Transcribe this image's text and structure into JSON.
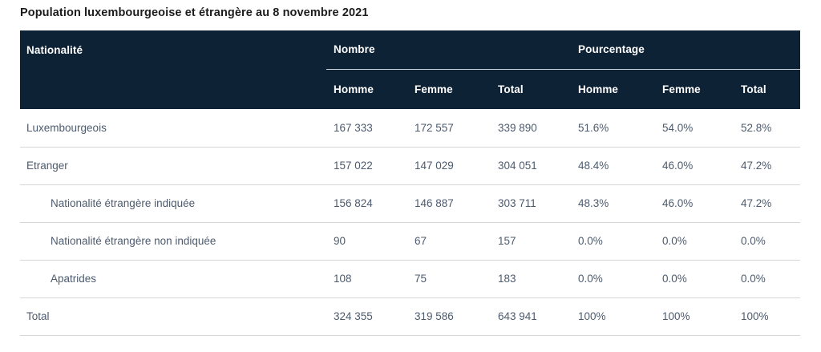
{
  "title": "Population luxembourgeoise et étrangère au 8 novembre 2021",
  "colors": {
    "header_background": "#0e2236",
    "header_text": "#ffffff",
    "body_text": "#4d5b6e",
    "row_divider": "#d6d6d6",
    "header_divider": "#ced4da",
    "title_text": "#1c1c1c",
    "page_background": "#ffffff"
  },
  "chart_data": {
    "type": "table",
    "title": "Population luxembourgeoise et étrangère au 8 novembre 2021",
    "header": {
      "col1": "Nationalité",
      "group1": "Nombre",
      "group2": "Pourcentage",
      "subcols": [
        "Homme",
        "Femme",
        "Total",
        "Homme",
        "Femme",
        "Total"
      ]
    },
    "rows": [
      {
        "label": "Luxembourgeois",
        "indent": false,
        "values": [
          "167 333",
          "172 557",
          "339 890",
          "51.6%",
          "54.0%",
          "52.8%"
        ]
      },
      {
        "label": "Etranger",
        "indent": false,
        "values": [
          "157 022",
          "147 029",
          "304 051",
          "48.4%",
          "46.0%",
          "47.2%"
        ]
      },
      {
        "label": "Nationalité étrangère indiquée",
        "indent": true,
        "values": [
          "156 824",
          "146 887",
          "303 711",
          "48.3%",
          "46.0%",
          "47.2%"
        ]
      },
      {
        "label": "Nationalité étrangère non indiquée",
        "indent": true,
        "values": [
          "90",
          "67",
          "157",
          "0.0%",
          "0.0%",
          "0.0%"
        ]
      },
      {
        "label": "Apatrides",
        "indent": true,
        "values": [
          "108",
          "75",
          "183",
          "0.0%",
          "0.0%",
          "0.0%"
        ]
      },
      {
        "label": "Total",
        "indent": false,
        "values": [
          "324 355",
          "319 586",
          "643 941",
          "100%",
          "100%",
          "100%"
        ]
      }
    ]
  }
}
